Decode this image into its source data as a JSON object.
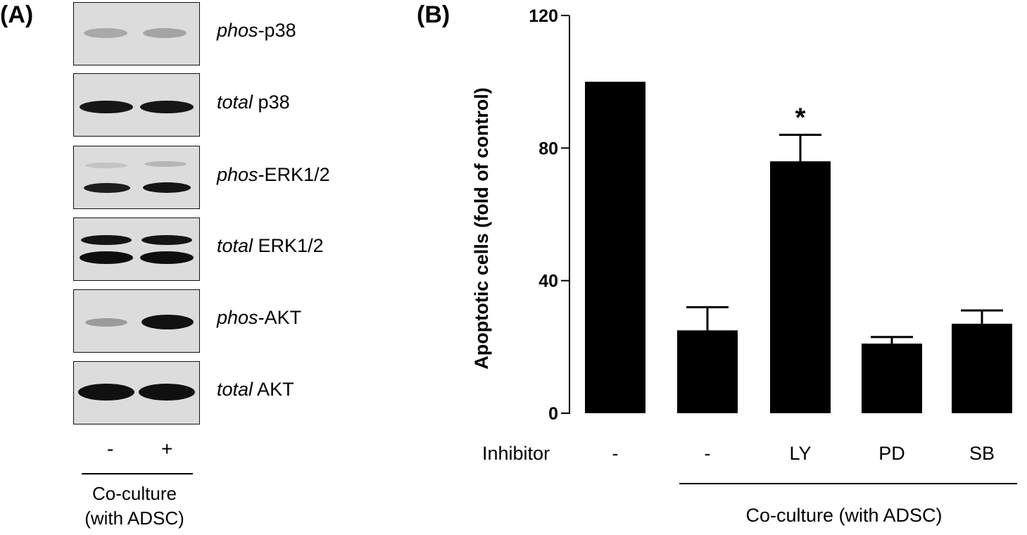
{
  "panel_a": {
    "label": "(A)",
    "lanes": [
      "-",
      "+"
    ],
    "footer_line1": "Co-culture",
    "footer_line2": "(with ADSC)",
    "blots": [
      {
        "prefix": "phos",
        "name": "-p38"
      },
      {
        "prefix": "total",
        "name": " p38"
      },
      {
        "prefix": "phos",
        "name": "-ERK1/2"
      },
      {
        "prefix": "total",
        "name": " ERK1/2"
      },
      {
        "prefix": "phos",
        "name": "-AKT"
      },
      {
        "prefix": "total",
        "name": " AKT"
      }
    ]
  },
  "panel_b": {
    "label": "(B)",
    "group_label": "Co-culture (with ADSC)",
    "row_label": "Inhibitor"
  },
  "chart_data": {
    "type": "bar",
    "ylabel": "Apoptotic cells (fold of control)",
    "ylim": [
      0,
      120
    ],
    "yticks": [
      0,
      40,
      80,
      120
    ],
    "categories": [
      "-",
      "-",
      "LY",
      "PD",
      "SB"
    ],
    "values": [
      100,
      25,
      76,
      21,
      27
    ],
    "errors": [
      0,
      7,
      8,
      2,
      4
    ],
    "annotations": [
      {
        "category_index": 2,
        "text": "*"
      }
    ],
    "bar_color": "#000000"
  }
}
